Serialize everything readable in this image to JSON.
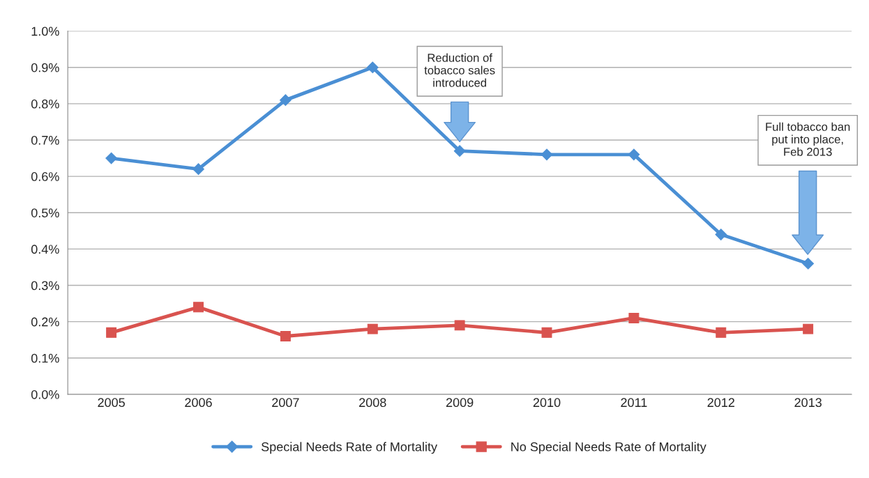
{
  "chart_data": {
    "type": "line",
    "categories": [
      "2005",
      "2006",
      "2007",
      "2008",
      "2009",
      "2010",
      "2011",
      "2012",
      "2013"
    ],
    "series": [
      {
        "name": "Special Needs Rate of Mortality",
        "color": "#4a8fd4",
        "marker": "diamond",
        "values": [
          0.65,
          0.62,
          0.81,
          0.9,
          0.67,
          0.66,
          0.66,
          0.44,
          0.36
        ]
      },
      {
        "name": "No Special Needs Rate of Mortality",
        "color": "#d9534f",
        "marker": "square",
        "values": [
          0.17,
          0.24,
          0.16,
          0.18,
          0.19,
          0.17,
          0.21,
          0.17,
          0.18
        ]
      }
    ],
    "ylim": [
      0,
      1.0
    ],
    "yticks": [
      {
        "value": 0,
        "label": "0.0%"
      },
      {
        "value": 0.1,
        "label": "0.1%"
      },
      {
        "value": 0.2,
        "label": "0.2%"
      },
      {
        "value": 0.3,
        "label": "0.3%"
      },
      {
        "value": 0.4,
        "label": "0.4%"
      },
      {
        "value": 0.5,
        "label": "0.5%"
      },
      {
        "value": 0.6,
        "label": "0.6%"
      },
      {
        "value": 0.7,
        "label": "0.7%"
      },
      {
        "value": 0.8,
        "label": "0.8%"
      },
      {
        "value": 0.9,
        "label": "0.9%"
      },
      {
        "value": 1.0,
        "label": "1.0%"
      }
    ],
    "annotations": [
      "Reduction of\ntobacco sales\nintroduced",
      "Full tobacco ban\nput into place,\nFeb 2013"
    ],
    "grid": "y",
    "line_style": "solid",
    "legend": "bottom"
  }
}
